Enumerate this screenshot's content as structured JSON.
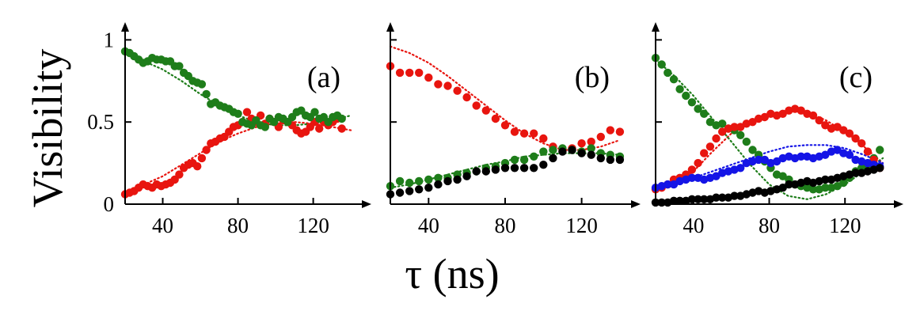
{
  "figure": {
    "ylabel": "Visibility",
    "xlabel": "τ (ns)"
  },
  "colors": {
    "red": "#e8150f",
    "green": "#1e7d1a",
    "black": "#000000",
    "blue": "#1414e6"
  },
  "chart_data": [
    {
      "type": "scatter",
      "panel_label": "(a)",
      "xlim": [
        20,
        145
      ],
      "ylim": [
        0,
        1.05
      ],
      "xticks": [
        40,
        80,
        120
      ],
      "xtick_labels": [
        "40",
        "80",
        "120"
      ],
      "yticks": [
        0,
        0.5,
        1
      ],
      "ytick_labels": [
        "0",
        "0.5",
        "1"
      ],
      "series": [
        {
          "name": "red-data",
          "color_key": "red",
          "x": [
            20,
            22.4,
            24.8,
            27.2,
            29.6,
            32,
            34.4,
            36.8,
            39.2,
            41.6,
            44,
            46.4,
            48.8,
            51.2,
            53.6,
            56,
            58.4,
            60.8,
            63.2,
            65.6,
            68,
            70.4,
            72.8,
            75.2,
            77.6,
            80,
            82.4,
            84.8,
            87.2,
            89.6,
            92,
            94.4,
            96.8,
            99.2,
            101.6,
            104,
            106.4,
            108.8,
            111.2,
            113.6,
            116,
            118.4,
            120.8,
            123.2,
            125.6,
            128,
            130.4,
            132.8,
            135.2
          ],
          "y": [
            0.06,
            0.07,
            0.08,
            0.1,
            0.12,
            0.11,
            0.1,
            0.12,
            0.11,
            0.12,
            0.13,
            0.15,
            0.18,
            0.22,
            0.24,
            0.25,
            0.23,
            0.28,
            0.33,
            0.37,
            0.38,
            0.4,
            0.41,
            0.44,
            0.47,
            0.48,
            0.5,
            0.56,
            0.52,
            0.5,
            0.54,
            0.49,
            0.52,
            0.5,
            0.47,
            0.51,
            0.5,
            0.48,
            0.45,
            0.43,
            0.44,
            0.47,
            0.5,
            0.46,
            0.5,
            0.48,
            0.5,
            0.52,
            0.46
          ]
        },
        {
          "name": "green-data",
          "color_key": "green",
          "x": [
            20,
            22.4,
            24.8,
            27.2,
            29.6,
            32,
            34.4,
            36.8,
            39.2,
            41.6,
            44,
            46.4,
            48.8,
            51.2,
            53.6,
            56,
            58.4,
            60.8,
            63.2,
            65.6,
            68,
            70.4,
            72.8,
            75.2,
            77.6,
            80,
            82.4,
            84.8,
            87.2,
            89.6,
            92,
            94.4,
            96.8,
            99.2,
            101.6,
            104,
            106.4,
            108.8,
            111.2,
            113.6,
            116,
            118.4,
            120.8,
            123.2,
            125.6,
            128,
            130.4,
            132.8,
            135.2
          ],
          "y": [
            0.93,
            0.92,
            0.9,
            0.88,
            0.86,
            0.87,
            0.89,
            0.88,
            0.88,
            0.87,
            0.87,
            0.84,
            0.84,
            0.8,
            0.78,
            0.75,
            0.74,
            0.73,
            0.67,
            0.61,
            0.62,
            0.6,
            0.59,
            0.58,
            0.56,
            0.55,
            0.5,
            0.49,
            0.48,
            0.51,
            0.48,
            0.47,
            0.52,
            0.5,
            0.53,
            0.52,
            0.5,
            0.53,
            0.56,
            0.57,
            0.54,
            0.53,
            0.56,
            0.52,
            0.53,
            0.5,
            0.53,
            0.54,
            0.52
          ]
        },
        {
          "name": "red-fit",
          "color_key": "red",
          "style": "dotted",
          "x": [
            20,
            30,
            40,
            50,
            60,
            70,
            80,
            90,
            100,
            110,
            120,
            130,
            140
          ],
          "y": [
            0.07,
            0.12,
            0.17,
            0.24,
            0.31,
            0.38,
            0.43,
            0.47,
            0.49,
            0.5,
            0.49,
            0.47,
            0.45
          ]
        },
        {
          "name": "green-fit",
          "color_key": "green",
          "style": "dotted",
          "x": [
            20,
            30,
            40,
            50,
            60,
            70,
            80,
            90,
            100,
            110,
            120,
            130,
            140
          ],
          "y": [
            0.92,
            0.87,
            0.82,
            0.75,
            0.67,
            0.6,
            0.54,
            0.5,
            0.48,
            0.48,
            0.49,
            0.51,
            0.54
          ]
        }
      ]
    },
    {
      "type": "scatter",
      "panel_label": "(b)",
      "xlim": [
        20,
        145
      ],
      "ylim": [
        0,
        1.05
      ],
      "xticks": [
        40,
        80,
        120
      ],
      "xtick_labels": [
        "40",
        "80",
        "120"
      ],
      "yticks": [
        0,
        0.5,
        1
      ],
      "ytick_labels": [],
      "series": [
        {
          "name": "red-data",
          "color_key": "red",
          "x": [
            20,
            25,
            30,
            35,
            40,
            45,
            50,
            55,
            60,
            65,
            70,
            75,
            80,
            85,
            90,
            95,
            100,
            105,
            110,
            115,
            120,
            125,
            130,
            135,
            140
          ],
          "y": [
            0.84,
            0.8,
            0.8,
            0.8,
            0.77,
            0.73,
            0.72,
            0.69,
            0.65,
            0.6,
            0.57,
            0.52,
            0.48,
            0.44,
            0.43,
            0.43,
            0.4,
            0.35,
            0.33,
            0.34,
            0.37,
            0.38,
            0.41,
            0.45,
            0.44
          ]
        },
        {
          "name": "green-data",
          "color_key": "green",
          "x": [
            20,
            25,
            30,
            35,
            40,
            45,
            50,
            55,
            60,
            65,
            70,
            75,
            80,
            85,
            90,
            95,
            100,
            105,
            110,
            115,
            120,
            125,
            130,
            135,
            140
          ],
          "y": [
            0.11,
            0.14,
            0.13,
            0.14,
            0.15,
            0.16,
            0.16,
            0.18,
            0.19,
            0.2,
            0.22,
            0.23,
            0.25,
            0.27,
            0.27,
            0.29,
            0.32,
            0.33,
            0.34,
            0.33,
            0.32,
            0.34,
            0.31,
            0.3,
            0.29
          ]
        },
        {
          "name": "black-data",
          "color_key": "black",
          "x": [
            20,
            25,
            30,
            35,
            40,
            45,
            50,
            55,
            60,
            65,
            70,
            75,
            80,
            85,
            90,
            95,
            100,
            105,
            110,
            115,
            120,
            125,
            130,
            135,
            140
          ],
          "y": [
            0.06,
            0.07,
            0.08,
            0.09,
            0.1,
            0.12,
            0.14,
            0.15,
            0.17,
            0.2,
            0.2,
            0.21,
            0.22,
            0.22,
            0.22,
            0.22,
            0.24,
            0.28,
            0.32,
            0.33,
            0.31,
            0.3,
            0.28,
            0.27,
            0.27
          ]
        },
        {
          "name": "red-fit",
          "color_key": "red",
          "style": "dotted",
          "x": [
            20,
            30,
            40,
            50,
            60,
            70,
            80,
            90,
            100,
            110,
            120,
            130,
            140
          ],
          "y": [
            0.96,
            0.92,
            0.86,
            0.78,
            0.69,
            0.6,
            0.51,
            0.43,
            0.37,
            0.33,
            0.33,
            0.35,
            0.39
          ]
        },
        {
          "name": "green-fit",
          "color_key": "green",
          "style": "dotted",
          "x": [
            20,
            30,
            40,
            50,
            60,
            70,
            80,
            90,
            100,
            110,
            120,
            130,
            140
          ],
          "y": [
            0.1,
            0.12,
            0.15,
            0.18,
            0.21,
            0.24,
            0.26,
            0.29,
            0.3,
            0.31,
            0.31,
            0.31,
            0.3
          ]
        }
      ]
    },
    {
      "type": "scatter",
      "panel_label": "(c)",
      "xlim": [
        20,
        145
      ],
      "ylim": [
        0,
        1.05
      ],
      "xticks": [
        40,
        80,
        120
      ],
      "xtick_labels": [
        "40",
        "80",
        "120"
      ],
      "yticks": [
        0,
        0.5,
        1
      ],
      "ytick_labels": [],
      "series": [
        {
          "name": "green-data",
          "color_key": "green",
          "x": [
            20,
            23.2,
            26.4,
            29.6,
            32.8,
            36,
            39.2,
            42.4,
            45.6,
            48.8,
            52,
            55.2,
            58.4,
            61.6,
            64.8,
            68,
            71.2,
            74.4,
            77.6,
            80.8,
            84,
            87.2,
            90.4,
            93.6,
            96.8,
            100,
            103.2,
            106.4,
            109.6,
            112.8,
            116,
            119.2,
            122.4,
            125.6,
            128.8,
            132,
            135.2,
            138.4
          ],
          "y": [
            0.89,
            0.85,
            0.8,
            0.76,
            0.7,
            0.66,
            0.62,
            0.58,
            0.55,
            0.5,
            0.48,
            0.49,
            0.46,
            0.45,
            0.42,
            0.38,
            0.33,
            0.3,
            0.26,
            0.22,
            0.18,
            0.17,
            0.15,
            0.12,
            0.11,
            0.1,
            0.09,
            0.09,
            0.1,
            0.1,
            0.11,
            0.13,
            0.16,
            0.2,
            0.22,
            0.24,
            0.28,
            0.33
          ]
        },
        {
          "name": "red-data",
          "color_key": "red",
          "x": [
            20,
            23.2,
            26.4,
            29.6,
            32.8,
            36,
            39.2,
            42.4,
            45.6,
            48.8,
            52,
            55.2,
            58.4,
            61.6,
            64.8,
            68,
            71.2,
            74.4,
            77.6,
            80.8,
            84,
            87.2,
            90.4,
            93.6,
            96.8,
            100,
            103.2,
            106.4,
            109.6,
            112.8,
            116,
            119.2,
            122.4,
            125.6,
            128.8,
            132,
            135.2,
            138.4
          ],
          "y": [
            0.09,
            0.1,
            0.12,
            0.15,
            0.16,
            0.18,
            0.21,
            0.25,
            0.31,
            0.35,
            0.4,
            0.44,
            0.46,
            0.47,
            0.47,
            0.49,
            0.5,
            0.52,
            0.53,
            0.55,
            0.54,
            0.55,
            0.57,
            0.58,
            0.57,
            0.55,
            0.54,
            0.51,
            0.48,
            0.46,
            0.47,
            0.45,
            0.43,
            0.4,
            0.37,
            0.32,
            0.27,
            0.22
          ]
        },
        {
          "name": "blue-data",
          "color_key": "blue",
          "x": [
            20,
            23.2,
            26.4,
            29.6,
            32.8,
            36,
            39.2,
            42.4,
            45.6,
            48.8,
            52,
            55.2,
            58.4,
            61.6,
            64.8,
            68,
            71.2,
            74.4,
            77.6,
            80.8,
            84,
            87.2,
            90.4,
            93.6,
            96.8,
            100,
            103.2,
            106.4,
            109.6,
            112.8,
            116,
            119.2,
            122.4,
            125.6,
            128.8,
            132,
            135.2,
            138.4
          ],
          "y": [
            0.1,
            0.11,
            0.12,
            0.12,
            0.14,
            0.15,
            0.16,
            0.16,
            0.15,
            0.16,
            0.17,
            0.19,
            0.2,
            0.21,
            0.22,
            0.25,
            0.26,
            0.27,
            0.27,
            0.25,
            0.26,
            0.28,
            0.29,
            0.28,
            0.29,
            0.29,
            0.28,
            0.29,
            0.3,
            0.32,
            0.33,
            0.31,
            0.3,
            0.27,
            0.26,
            0.25,
            0.24,
            0.23
          ]
        },
        {
          "name": "black-data",
          "color_key": "black",
          "x": [
            20,
            23.2,
            26.4,
            29.6,
            32.8,
            36,
            39.2,
            42.4,
            45.6,
            48.8,
            52,
            55.2,
            58.4,
            61.6,
            64.8,
            68,
            71.2,
            74.4,
            77.6,
            80.8,
            84,
            87.2,
            90.4,
            93.6,
            96.8,
            100,
            103.2,
            106.4,
            109.6,
            112.8,
            116,
            119.2,
            122.4,
            125.6,
            128.8,
            132,
            135.2,
            138.4
          ],
          "y": [
            0.01,
            0.01,
            0.01,
            0.02,
            0.02,
            0.02,
            0.03,
            0.03,
            0.03,
            0.03,
            0.04,
            0.04,
            0.04,
            0.05,
            0.05,
            0.06,
            0.07,
            0.08,
            0.07,
            0.08,
            0.09,
            0.1,
            0.12,
            0.12,
            0.13,
            0.14,
            0.13,
            0.14,
            0.15,
            0.15,
            0.16,
            0.17,
            0.18,
            0.19,
            0.19,
            0.2,
            0.21,
            0.22
          ]
        },
        {
          "name": "red-fit",
          "color_key": "red",
          "style": "dotted",
          "x": [
            20,
            30,
            40,
            50,
            60,
            70,
            80,
            90,
            100,
            110,
            120,
            130,
            140
          ],
          "y": [
            0.08,
            0.12,
            0.2,
            0.32,
            0.43,
            0.5,
            0.55,
            0.57,
            0.56,
            0.51,
            0.44,
            0.35,
            0.25
          ]
        },
        {
          "name": "green-fit",
          "color_key": "green",
          "style": "dotted",
          "x": [
            20,
            30,
            40,
            50,
            60,
            70,
            80,
            90,
            100,
            110,
            120,
            130,
            140
          ],
          "y": [
            0.88,
            0.78,
            0.66,
            0.52,
            0.38,
            0.24,
            0.12,
            0.05,
            0.03,
            0.06,
            0.12,
            0.2,
            0.28
          ]
        },
        {
          "name": "blue-fit",
          "color_key": "blue",
          "style": "dotted",
          "x": [
            20,
            30,
            40,
            50,
            60,
            70,
            80,
            90,
            100,
            110,
            120,
            130,
            140
          ],
          "y": [
            0.08,
            0.12,
            0.16,
            0.2,
            0.24,
            0.28,
            0.32,
            0.35,
            0.36,
            0.36,
            0.34,
            0.3,
            0.25
          ]
        }
      ]
    }
  ]
}
